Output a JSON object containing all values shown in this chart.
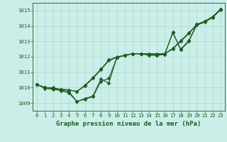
{
  "x": [
    0,
    1,
    2,
    3,
    4,
    5,
    6,
    7,
    8,
    9,
    10,
    11,
    12,
    13,
    14,
    15,
    16,
    17,
    18,
    19,
    20,
    21,
    22,
    23
  ],
  "line1": [
    1010.2,
    1010.0,
    1010.0,
    1009.85,
    1009.75,
    1009.1,
    1009.3,
    1009.45,
    1010.55,
    1010.3,
    1011.95,
    1012.1,
    1012.2,
    1012.2,
    1012.15,
    1012.1,
    1012.2,
    1013.55,
    1012.5,
    1013.05,
    1014.1,
    1014.3,
    1014.6,
    1015.1
  ],
  "line2": [
    1010.2,
    1010.0,
    1009.95,
    1009.9,
    1009.85,
    1009.75,
    1010.1,
    1010.6,
    1011.15,
    1011.75,
    1011.95,
    1012.1,
    1012.2,
    1012.2,
    1012.2,
    1012.15,
    1012.2,
    1012.5,
    1013.0,
    1013.5,
    1014.05,
    1014.25,
    1014.55,
    1015.05
  ],
  "line3": [
    1010.2,
    1010.0,
    1009.95,
    1009.9,
    1009.85,
    1009.75,
    1010.15,
    1010.65,
    1011.2,
    1011.8,
    1012.0,
    1012.1,
    1012.2,
    1012.2,
    1012.2,
    1012.2,
    1012.2,
    1012.55,
    1013.05,
    1013.55,
    1014.1,
    1014.3,
    1014.6,
    1015.1
  ],
  "line4": [
    1010.2,
    1009.95,
    1009.9,
    1009.8,
    1009.65,
    1009.1,
    1009.25,
    1009.4,
    1010.4,
    1010.6,
    1011.95,
    1012.1,
    1012.2,
    1012.2,
    1012.1,
    1012.1,
    1012.15,
    1013.6,
    1012.45,
    1013.0,
    1014.05,
    1014.3,
    1014.6,
    1015.1
  ],
  "bg_color": "#cceee8",
  "line_color": "#1e5c1e",
  "grid_color": "#aad8d0",
  "xlabel": "Graphe pression niveau de la mer (hPa)",
  "ylim": [
    1008.5,
    1015.5
  ],
  "yticks": [
    1009,
    1010,
    1011,
    1012,
    1013,
    1014,
    1015
  ],
  "xticks": [
    0,
    1,
    2,
    3,
    4,
    5,
    6,
    7,
    8,
    9,
    10,
    11,
    12,
    13,
    14,
    15,
    16,
    17,
    18,
    19,
    20,
    21,
    22,
    23
  ],
  "marker": "D",
  "markersize": 2.5,
  "linewidth": 0.8,
  "xlabel_fontsize": 6.5,
  "tick_fontsize": 5.2
}
